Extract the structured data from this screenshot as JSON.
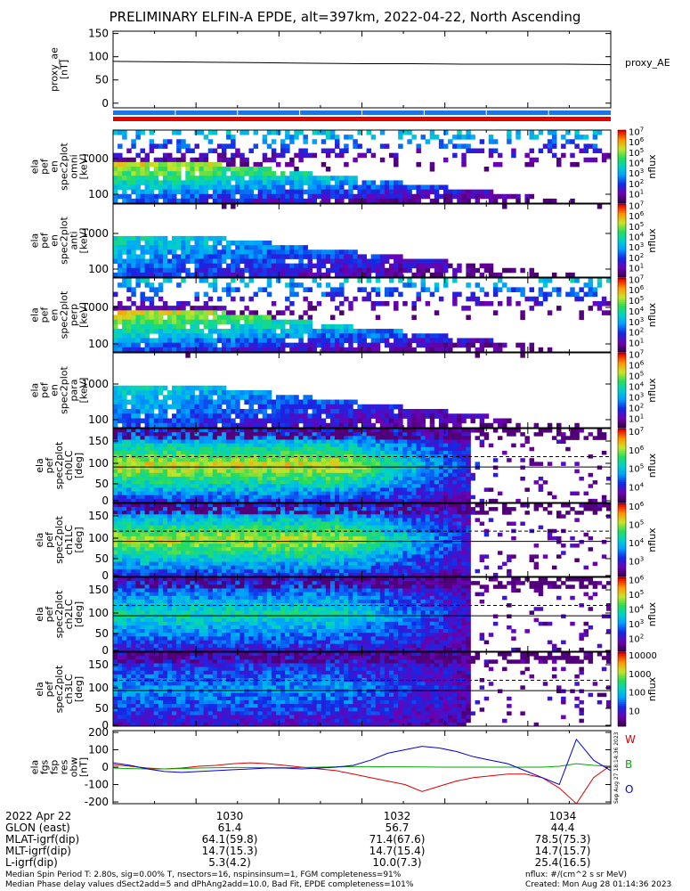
{
  "title": "PRELIMINARY ELFIN-A EPDE, alt=397km, 2022-04-22, North Ascending",
  "chart_data": [
    {
      "type": "line",
      "name": "proxy_AE",
      "ylabel": [
        "proxy_ae",
        "[nT]"
      ],
      "yticks": [
        "150",
        "100",
        "50",
        "0"
      ],
      "ylim": [
        -10,
        155
      ],
      "series": [
        {
          "name": "proxy_AE",
          "values": [
            90,
            89,
            88,
            87,
            86,
            85,
            85,
            84,
            84,
            84,
            83
          ]
        }
      ],
      "legend": "proxy_AE"
    },
    {
      "type": "heatmap",
      "ylabel": [
        "ela",
        "pef",
        "en",
        "spec2plot",
        "omni",
        "[keV]"
      ],
      "yticks": [
        "1000",
        "100"
      ],
      "colorbar": {
        "ticks": [
          "10^7",
          "10^6",
          "10^5",
          "10^4",
          "10^3",
          "10^2",
          "10^1"
        ],
        "label": "nflux"
      }
    },
    {
      "type": "heatmap",
      "ylabel": [
        "ela",
        "pef",
        "en",
        "spec2plot",
        "anti",
        "[keV]"
      ],
      "yticks": [
        "1000",
        "100"
      ],
      "colorbar": {
        "ticks": [
          "10^7",
          "10^6",
          "10^5",
          "10^4",
          "10^3",
          "10^2",
          "10^1"
        ],
        "label": "nflux"
      }
    },
    {
      "type": "heatmap",
      "ylabel": [
        "ela",
        "pef",
        "en",
        "spec2plot",
        "perp",
        "[keV]"
      ],
      "yticks": [
        "1000",
        "100"
      ],
      "colorbar": {
        "ticks": [
          "10^7",
          "10^6",
          "10^5",
          "10^4",
          "10^3",
          "10^2",
          "10^1"
        ],
        "label": "nflux"
      }
    },
    {
      "type": "heatmap",
      "ylabel": [
        "ela",
        "pef",
        "en",
        "spec2plot",
        "para",
        "[keV]"
      ],
      "yticks": [
        "1000",
        "100"
      ],
      "colorbar": {
        "ticks": [
          "10^7",
          "10^6",
          "10^5",
          "10^4",
          "10^3",
          "10^2",
          "10^1"
        ],
        "label": "nflux"
      }
    },
    {
      "type": "heatmap",
      "ylabel": [
        "ela",
        "pef",
        "spec2plot",
        "ch0LC",
        "[deg]"
      ],
      "yticks": [
        "150",
        "100",
        "50",
        "0"
      ],
      "colorbar": {
        "ticks": [
          "10^7",
          "10^6",
          "10^5",
          "10^4"
        ],
        "label": "nflux"
      }
    },
    {
      "type": "heatmap",
      "ylabel": [
        "ela",
        "pef",
        "spec2plot",
        "ch1LC",
        "[deg]"
      ],
      "yticks": [
        "150",
        "100",
        "50",
        "0"
      ],
      "colorbar": {
        "ticks": [
          "10^6",
          "10^5",
          "10^4",
          "10^3"
        ],
        "label": "nflux"
      }
    },
    {
      "type": "heatmap",
      "ylabel": [
        "ela",
        "pef",
        "spec2plot",
        "ch2LC",
        "[deg]"
      ],
      "yticks": [
        "150",
        "100",
        "50",
        "0"
      ],
      "colorbar": {
        "ticks": [
          "10^6",
          "10^5",
          "10^4",
          "10^3",
          "10^2"
        ],
        "label": "nflux"
      }
    },
    {
      "type": "heatmap",
      "ylabel": [
        "ela",
        "pef",
        "spec2plot",
        "ch3LC",
        "[deg]"
      ],
      "yticks": [
        "150",
        "100",
        "50",
        "0"
      ],
      "colorbar": {
        "ticks": [
          "10000",
          "1000",
          "100",
          "10"
        ],
        "label": "nflux"
      }
    },
    {
      "type": "line",
      "ylabel": [
        "ela",
        "fgs",
        "fsp",
        "res",
        "obw",
        "[nT]"
      ],
      "yticks": [
        "200",
        "100",
        "0",
        "-100",
        "-200"
      ],
      "ylim": [
        -210,
        210
      ],
      "legend": [
        "W",
        "B",
        "O"
      ],
      "side_note": "Sep Aug 27 18:14:36 2023",
      "series": [
        {
          "name": "W",
          "color": "#dd0000",
          "values": [
            15,
            5,
            -5,
            -10,
            -5,
            5,
            10,
            20,
            25,
            20,
            10,
            0,
            -10,
            -20,
            -40,
            -60,
            -80,
            -100,
            -140,
            -110,
            -80,
            -60,
            -50,
            -40,
            -40,
            -60,
            -120,
            -210,
            -60,
            10
          ]
        },
        {
          "name": "B",
          "color": "#00aa00",
          "values": [
            -5,
            -8,
            -10,
            -10,
            -8,
            -5,
            -3,
            -2,
            -2,
            -3,
            -3,
            -2,
            0,
            2,
            3,
            3,
            2,
            2,
            1,
            0,
            0,
            0,
            0,
            0,
            0,
            0,
            5,
            20,
            10,
            5
          ]
        },
        {
          "name": "O",
          "color": "#0000dd",
          "values": [
            25,
            10,
            -10,
            -25,
            -30,
            -25,
            -20,
            -15,
            -10,
            -5,
            -5,
            -10,
            -5,
            0,
            10,
            40,
            80,
            100,
            120,
            110,
            90,
            60,
            40,
            20,
            -20,
            -60,
            -100,
            160,
            40,
            -20
          ]
        }
      ]
    }
  ],
  "time_axis": {
    "row_labels": [
      "2022 Apr 22",
      "GLON (east)",
      "MLAT-igrf(dip)",
      "MLT-igrf(dip)",
      "L-igrf(dip)"
    ],
    "columns": [
      {
        "time": "1030",
        "values": [
          "61.4",
          "64.1(59.8)",
          "14.7(15.3)",
          "5.3(4.2)"
        ]
      },
      {
        "time": "1032",
        "values": [
          "56.7",
          "71.4(67.6)",
          "14.7(15.4)",
          "10.0(7.3)"
        ]
      },
      {
        "time": "1034",
        "values": [
          "44.4",
          "78.5(75.3)",
          "14.7(15.7)",
          "25.4(16.5)"
        ]
      }
    ]
  },
  "footer": {
    "line1": "Median Spin Period T: 2.80s, sig=0.00% T, nsectors=16, nspinsinsum=1, FGM completeness=91%",
    "line2": "Median Phase delay values dSect2add=5 and dPhAng2add=10.0, Bad Fit, EPDE completeness=101%",
    "units": "nflux: #/(cm^2 s sr MeV)",
    "created": "Created: Mon Aug 28 01:14:36 2023"
  }
}
